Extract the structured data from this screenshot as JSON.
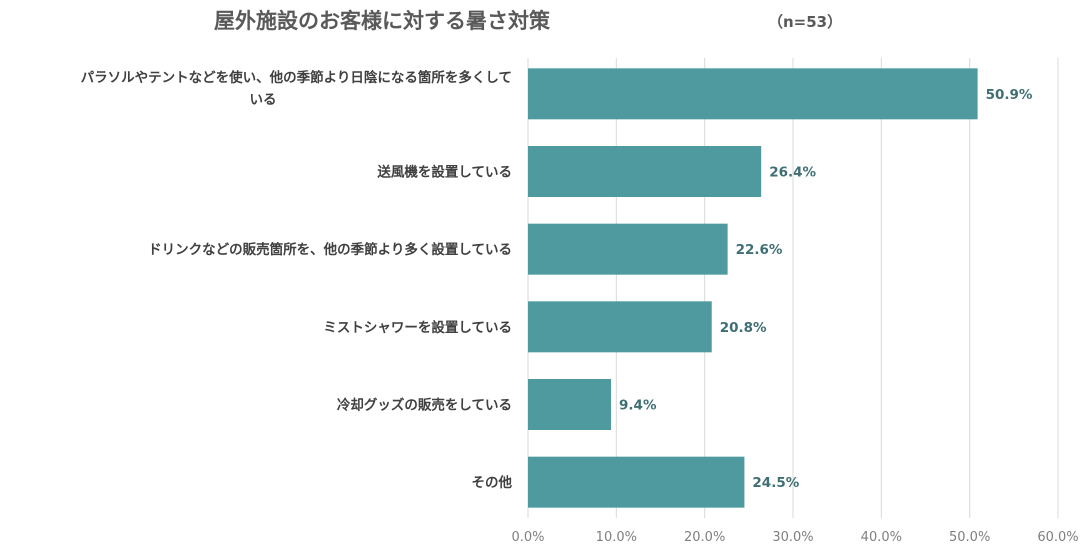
{
  "chart_data": {
    "type": "bar",
    "orientation": "horizontal",
    "title": "屋外施設のお客様に対する暑さ対策",
    "subtitle": "（n=53）",
    "categories": [
      [
        "パラソルやテントなどを使い、他の季節より日陰になる箇所を多くして",
        "いる"
      ],
      [
        "送風機を設置している"
      ],
      [
        "ドリンクなどの販売箇所を、他の季節より多く設置している"
      ],
      [
        "ミストシャワーを設置している"
      ],
      [
        "冷却グッズの販売をしている"
      ],
      [
        "その他"
      ]
    ],
    "values": [
      50.9,
      26.4,
      22.6,
      20.8,
      9.4,
      24.5
    ],
    "value_labels": [
      "50.9%",
      "26.4%",
      "22.6%",
      "20.8%",
      "9.4%",
      "24.5%"
    ],
    "xlim": [
      0,
      60
    ],
    "x_ticks": [
      0,
      10,
      20,
      30,
      40,
      50,
      60
    ],
    "x_tick_labels": [
      "0.0%",
      "10.0%",
      "20.0%",
      "30.0%",
      "40.0%",
      "50.0%",
      "60.0%"
    ],
    "bar_color": "#4e9a9e",
    "grid": true,
    "legend": "none"
  }
}
